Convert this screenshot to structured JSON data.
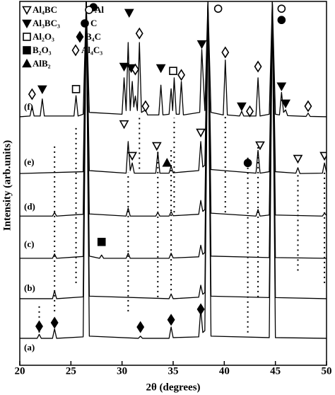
{
  "chart_data": {
    "type": "line",
    "xlabel": "2θ (degrees)",
    "ylabel": "Intensity (arb.units)",
    "xlim": [
      20,
      50
    ],
    "xticks": [
      20,
      25,
      30,
      35,
      40,
      45,
      50
    ],
    "ylim": [
      0,
      100
    ],
    "color": "#000000",
    "series": [
      {
        "name": "(a)",
        "x": [
          20,
          21.7,
          21.9,
          22.1,
          23.2,
          23.4,
          23.6,
          26.2,
          26.5,
          26.8,
          31.6,
          31.8,
          32,
          34.6,
          34.8,
          35,
          37.5,
          37.7,
          37.9,
          38.1,
          38.4,
          38.7,
          44.4,
          44.7,
          45,
          50
        ],
        "values": [
          7.4,
          7.4,
          8.5,
          7.4,
          7.4,
          10,
          7.4,
          7.8,
          100,
          8,
          7.4,
          8,
          7.4,
          7.4,
          10.5,
          7.6,
          7.8,
          15.5,
          9,
          9.5,
          100,
          8,
          7.6,
          100,
          7.6,
          7.4
        ]
      },
      {
        "name": "(b)",
        "x": [
          20,
          23.2,
          23.4,
          23.6,
          26.2,
          26.5,
          26.8,
          34.6,
          34.8,
          35,
          37.5,
          37.7,
          37.9,
          38.1,
          38.4,
          38.7,
          44.4,
          44.7,
          45,
          50
        ],
        "values": [
          18.3,
          18.3,
          20.5,
          18.3,
          18.8,
          100,
          19,
          18.3,
          19.6,
          18.3,
          18.7,
          22,
          19.5,
          20,
          100,
          19,
          18.6,
          100,
          18.6,
          18.3
        ]
      },
      {
        "name": "(c)",
        "x": [
          20,
          23.2,
          23.4,
          23.6,
          26.2,
          26.5,
          26.8,
          27.8,
          28,
          28.2,
          30.4,
          30.6,
          30.8,
          34.6,
          34.8,
          35,
          37.5,
          37.7,
          37.9,
          38.1,
          38.4,
          38.7,
          44.4,
          44.7,
          45,
          50
        ],
        "values": [
          29.4,
          29.4,
          30.6,
          29.4,
          29.9,
          100,
          30,
          29.4,
          30.3,
          29.4,
          29.4,
          30.8,
          29.4,
          29.4,
          30.8,
          29.5,
          29.8,
          33,
          30.5,
          31,
          100,
          30,
          29.6,
          100,
          29.6,
          29.4
        ]
      },
      {
        "name": "(d)",
        "x": [
          20,
          23.2,
          23.4,
          23.6,
          26.2,
          26.5,
          26.8,
          30.4,
          30.6,
          30.8,
          33.3,
          33.5,
          33.7,
          34.6,
          34.8,
          35,
          37.5,
          37.7,
          37.9,
          38.1,
          38.4,
          38.7,
          43.1,
          43.3,
          43.5,
          44.4,
          44.7,
          45,
          49.6,
          49.8,
          50
        ],
        "values": [
          41,
          41,
          42,
          41,
          41.5,
          100,
          41.6,
          41,
          43.2,
          41,
          41,
          42,
          41,
          41,
          42.2,
          41.1,
          41.5,
          45.3,
          42.3,
          42.8,
          100,
          41.8,
          41,
          42.8,
          41,
          41.3,
          100,
          41.3,
          41,
          41.8,
          41.2
        ]
      },
      {
        "name": "(e)",
        "x": [
          20,
          26.2,
          26.5,
          26.8,
          30.4,
          30.6,
          30.8,
          31,
          31.2,
          33.3,
          33.5,
          33.7,
          34.6,
          34.8,
          35,
          37.5,
          37.7,
          37.9,
          38.1,
          38.4,
          38.7,
          43.1,
          43.3,
          43.5,
          44.4,
          44.7,
          45,
          47,
          47.2,
          47.4,
          49.6,
          49.8,
          50
        ],
        "values": [
          52.7,
          53.2,
          100,
          53.5,
          52.8,
          61.5,
          53.5,
          55.6,
          52.8,
          52.8,
          58.6,
          52.8,
          52.8,
          54.7,
          52.9,
          53.5,
          61.5,
          54.5,
          55,
          100,
          53.8,
          52.8,
          59.1,
          52.8,
          53.2,
          100,
          53.2,
          52.8,
          54.3,
          52.7,
          52.8,
          55.6,
          53
        ]
      },
      {
        "name": "(f)",
        "x": [
          20,
          21,
          21.2,
          21.4,
          22,
          22.2,
          22.4,
          25.3,
          25.5,
          25.7,
          26.2,
          26.5,
          26.8,
          30,
          30.2,
          30.4,
          30.6,
          30.8,
          31,
          31.15,
          31.3,
          31.5,
          31.7,
          31.9,
          32.3,
          32.5,
          33.6,
          33.8,
          34,
          34.6,
          34.8,
          34.95,
          35.1,
          35.3,
          35.6,
          35.8,
          36,
          37.6,
          37.8,
          38.1,
          38.4,
          38.7,
          39.9,
          40.1,
          40.3,
          41.5,
          41.7,
          41.9,
          43.1,
          43.3,
          43.5,
          44.4,
          44.7,
          45,
          45.4,
          45.6,
          45.8,
          46,
          46.2,
          48,
          48.2,
          48.4,
          50
        ],
        "values": [
          68.3,
          68.5,
          71.2,
          68.5,
          68.5,
          73.2,
          68.5,
          68.5,
          74.1,
          68.5,
          69,
          100,
          69.5,
          69,
          79,
          70,
          88.7,
          70,
          78,
          71,
          74,
          70,
          88.7,
          69.5,
          70.2,
          68.8,
          68.8,
          77,
          68.8,
          69,
          76,
          70,
          79,
          69,
          69,
          78,
          68.8,
          69.5,
          86.8,
          70,
          100,
          69.5,
          68.8,
          83.9,
          68.8,
          68.5,
          69.8,
          68.5,
          68.5,
          79,
          68.5,
          69,
          100,
          69,
          68.8,
          75,
          69.5,
          70.2,
          68.6,
          68.4,
          69.3,
          68.4,
          68.3
        ]
      }
    ],
    "dotted_lines": [
      {
        "x": 21.9,
        "y0": 9,
        "y1": 17
      },
      {
        "x": 23.4,
        "y0": 14.8,
        "y1": 60.5
      },
      {
        "x": 25.5,
        "y0": 22.6,
        "y1": 66
      },
      {
        "x": 30.6,
        "y0": 14.8,
        "y1": 53
      },
      {
        "x": 31.7,
        "y0": 54,
        "y1": 69
      },
      {
        "x": 33.5,
        "y0": 18.7,
        "y1": 60
      },
      {
        "x": 34.8,
        "y0": 20.6,
        "y1": 59.5
      },
      {
        "x": 35.1,
        "y0": 42,
        "y1": 68
      },
      {
        "x": 40.1,
        "y0": 42,
        "y1": 69
      },
      {
        "x": 42.3,
        "y0": 9,
        "y1": 57.6
      },
      {
        "x": 43.3,
        "y0": 18.7,
        "y1": 61
      },
      {
        "x": 47.2,
        "y0": 26,
        "y1": 53
      },
      {
        "x": 49.8,
        "y0": 22.6,
        "y1": 53
      }
    ],
    "phases": [
      {
        "name": "Al₄BC",
        "symbol": "triangle-down-open"
      },
      {
        "name": "Al",
        "symbol": "circle-open"
      },
      {
        "name": "Al₃BC₃",
        "symbol": "triangle-down"
      },
      {
        "name": "C",
        "symbol": "circle"
      },
      {
        "name": "Al₂O₃",
        "symbol": "square-open"
      },
      {
        "name": "B₄C",
        "symbol": "diamond"
      },
      {
        "name": "B₂O₃",
        "symbol": "square"
      },
      {
        "name": "Al₄C₃",
        "symbol": "diamond-open"
      },
      {
        "name": "AlB₂",
        "symbol": "triangle-up"
      }
    ],
    "markers": [
      {
        "phase": 7,
        "x": 21.2,
        "y": 74.5
      },
      {
        "phase": 2,
        "x": 22.2,
        "y": 75.9
      },
      {
        "phase": 4,
        "x": 25.5,
        "y": 75.9
      },
      {
        "phase": 3,
        "x": 27.2,
        "y": 98.4
      },
      {
        "phase": 2,
        "x": 30.2,
        "y": 82.1
      },
      {
        "phase": 2,
        "x": 30.7,
        "y": 96.9
      },
      {
        "phase": 2,
        "x": 30.9,
        "y": 81.7
      },
      {
        "phase": 7,
        "x": 31.3,
        "y": 81.3
      },
      {
        "phase": 7,
        "x": 31.7,
        "y": 91.2
      },
      {
        "phase": 7,
        "x": 32.3,
        "y": 71.2
      },
      {
        "phase": 2,
        "x": 33.8,
        "y": 81.7
      },
      {
        "phase": 4,
        "x": 35.0,
        "y": 80.9
      },
      {
        "phase": 7,
        "x": 35.8,
        "y": 79.8
      },
      {
        "phase": 2,
        "x": 37.8,
        "y": 88.3
      },
      {
        "phase": 1,
        "x": 39.4,
        "y": 98
      },
      {
        "phase": 7,
        "x": 40.1,
        "y": 86
      },
      {
        "phase": 2,
        "x": 41.7,
        "y": 71.2
      },
      {
        "phase": 7,
        "x": 42.5,
        "y": 69.8
      },
      {
        "phase": 7,
        "x": 43.3,
        "y": 82.1
      },
      {
        "phase": 1,
        "x": 45.6,
        "y": 98
      },
      {
        "phase": 3,
        "x": 45.6,
        "y": 94.9
      },
      {
        "phase": 2,
        "x": 45.6,
        "y": 76.7
      },
      {
        "phase": 2,
        "x": 46.0,
        "y": 72
      },
      {
        "phase": 7,
        "x": 48.2,
        "y": 71.2
      },
      {
        "phase": 0,
        "x": 30.2,
        "y": 66.3
      },
      {
        "phase": 0,
        "x": 31.0,
        "y": 57.6
      },
      {
        "phase": 0,
        "x": 33.4,
        "y": 60.3
      },
      {
        "phase": 8,
        "x": 34.4,
        "y": 55.6
      },
      {
        "phase": 0,
        "x": 37.7,
        "y": 64
      },
      {
        "phase": 3,
        "x": 42.3,
        "y": 55.6
      },
      {
        "phase": 0,
        "x": 43.5,
        "y": 60.5
      },
      {
        "phase": 0,
        "x": 47.2,
        "y": 56.8
      },
      {
        "phase": 0,
        "x": 49.8,
        "y": 57.6
      },
      {
        "phase": 6,
        "x": 28.0,
        "y": 33.9
      },
      {
        "phase": 5,
        "x": 21.9,
        "y": 10.7
      },
      {
        "phase": 5,
        "x": 23.4,
        "y": 11.7
      },
      {
        "phase": 5,
        "x": 31.8,
        "y": 10.5
      },
      {
        "phase": 5,
        "x": 34.8,
        "y": 12.5
      },
      {
        "phase": 5,
        "x": 37.7,
        "y": 15.4
      }
    ]
  }
}
